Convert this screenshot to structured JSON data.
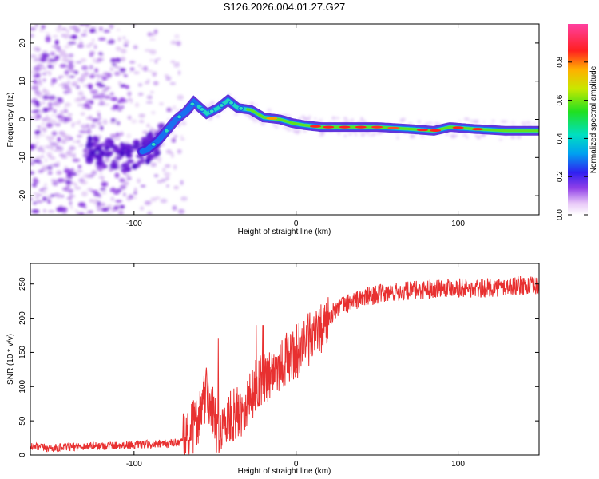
{
  "chart_data": [
    {
      "type": "heatmap",
      "title": "S126.2026.004.01.27.G27",
      "xlabel": "Height of straight line (km)",
      "ylabel": "Frequency (Hz)",
      "xlim": [
        -164,
        150
      ],
      "ylim": [
        -25,
        25
      ],
      "xticks": [
        -100,
        0,
        100
      ],
      "yticks": [
        -20,
        -10,
        0,
        10,
        20
      ],
      "ridge": {
        "x": [
          -120,
          -105,
          -92,
          -85,
          -80,
          -74,
          -68,
          -63,
          -55,
          -48,
          -42,
          -36,
          -28,
          -20,
          -10,
          -2,
          5,
          15,
          30,
          50,
          70,
          85,
          95,
          110,
          130,
          150
        ],
        "y": [
          -8.5,
          -10,
          -8,
          -5.5,
          -3,
          0,
          2,
          4.5,
          1.5,
          3,
          5,
          3,
          2.5,
          0.5,
          0,
          -1,
          -1.5,
          -2,
          -2,
          -2,
          -2.5,
          -3,
          -2,
          -2.5,
          -3,
          -3
        ]
      },
      "colorbar": {
        "label": "Normalized spectral amplitude",
        "range": [
          0,
          1
        ],
        "ticks": [
          0.0,
          0.2,
          0.4,
          0.6,
          0.8
        ]
      }
    },
    {
      "type": "line",
      "title": "",
      "xlabel": "Height of straight line (km)",
      "ylabel": "SNR (10 * v/v)",
      "xlim": [
        -164,
        150
      ],
      "ylim": [
        0,
        280
      ],
      "xticks": [
        -100,
        0,
        100
      ],
      "yticks": [
        0,
        50,
        100,
        150,
        200,
        250
      ],
      "series": [
        {
          "name": "SNR",
          "color": "#e83030",
          "x": [
            -164,
            -150,
            -130,
            -110,
            -95,
            -80,
            -70,
            -62,
            -55,
            -48,
            -40,
            -32,
            -25,
            -18,
            -12,
            -6,
            0,
            5,
            10,
            15,
            20,
            25,
            35,
            50,
            70,
            90,
            100,
            110,
            120,
            130,
            140,
            150
          ],
          "values": [
            12,
            10,
            13,
            14,
            15,
            16,
            20,
            45,
            90,
            35,
            55,
            70,
            100,
            115,
            130,
            140,
            150,
            165,
            170,
            180,
            200,
            215,
            225,
            235,
            240,
            245,
            245,
            242,
            245,
            246,
            248,
            246
          ]
        }
      ]
    }
  ]
}
